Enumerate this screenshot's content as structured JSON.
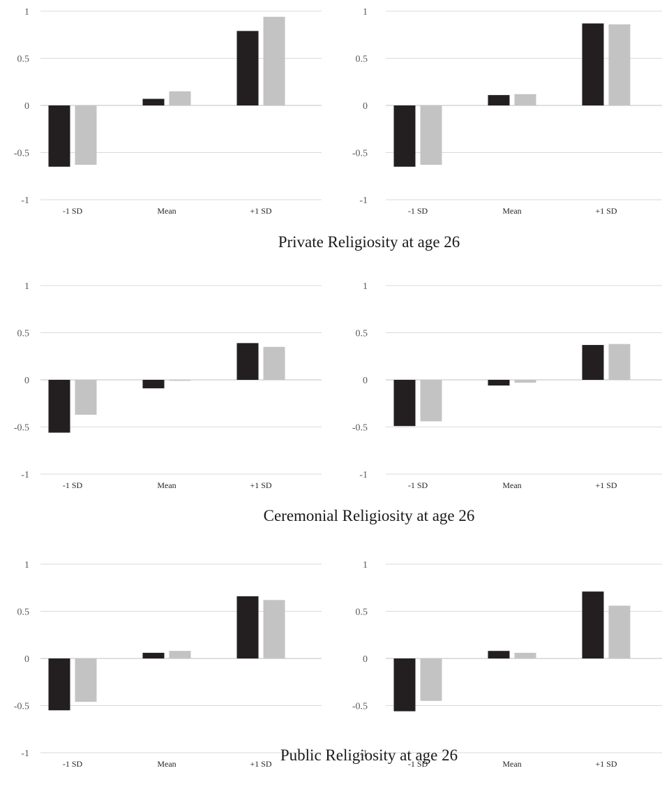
{
  "colors": {
    "series_a": "#231f20",
    "series_b": "#c3c3c3",
    "grid": "#d9d9d9",
    "text": "#595959"
  },
  "row_titles": [
    "Private Religiosity at age 26",
    "Ceremonial Religiosity at age 26",
    "Public Religiosity at age 26"
  ],
  "chart_data": [
    {
      "type": "bar",
      "row": 0,
      "col": 0,
      "categories": [
        "-1 SD",
        "Mean",
        "+1 SD"
      ],
      "yticks": [
        "1",
        "0.5",
        "0",
        "-0.5",
        "-1"
      ],
      "ylim": [
        -1,
        1
      ],
      "series": [
        {
          "values": [
            -0.65,
            0.07,
            0.79
          ]
        },
        {
          "values": [
            -0.63,
            0.15,
            0.94
          ]
        }
      ]
    },
    {
      "type": "bar",
      "row": 0,
      "col": 1,
      "categories": [
        "-1 SD",
        "Mean",
        "+1 SD"
      ],
      "yticks": [
        "1",
        "0.5",
        "0",
        "-0.5",
        "-1"
      ],
      "ylim": [
        -1,
        1
      ],
      "series": [
        {
          "values": [
            -0.65,
            0.11,
            0.87
          ]
        },
        {
          "values": [
            -0.63,
            0.12,
            0.86
          ]
        }
      ]
    },
    {
      "type": "bar",
      "row": 1,
      "col": 0,
      "categories": [
        "-1 SD",
        "Mean",
        "+1 SD"
      ],
      "yticks": [
        "1",
        "0.5",
        "0",
        "-0.5",
        "-1"
      ],
      "ylim": [
        -1,
        1
      ],
      "series": [
        {
          "values": [
            -0.56,
            -0.09,
            0.39
          ]
        },
        {
          "values": [
            -0.37,
            -0.01,
            0.35
          ]
        }
      ]
    },
    {
      "type": "bar",
      "row": 1,
      "col": 1,
      "categories": [
        "-1 SD",
        "Mean",
        "+1 SD"
      ],
      "yticks": [
        "1",
        "0.5",
        "0",
        "-0.5",
        "-1"
      ],
      "ylim": [
        -1,
        1
      ],
      "series": [
        {
          "values": [
            -0.49,
            -0.06,
            0.37
          ]
        },
        {
          "values": [
            -0.44,
            -0.03,
            0.38
          ]
        }
      ]
    },
    {
      "type": "bar",
      "row": 2,
      "col": 0,
      "categories": [
        "-1 SD",
        "Mean",
        "+1 SD"
      ],
      "yticks": [
        "1",
        "0.5",
        "0",
        "-0.5",
        "-1"
      ],
      "ylim": [
        -1,
        1
      ],
      "series": [
        {
          "values": [
            -0.55,
            0.06,
            0.66
          ]
        },
        {
          "values": [
            -0.46,
            0.08,
            0.62
          ]
        }
      ]
    },
    {
      "type": "bar",
      "row": 2,
      "col": 1,
      "categories": [
        "-1 SD",
        "Mean",
        "+1 SD"
      ],
      "yticks": [
        "1",
        "0.5",
        "0",
        "-0.5",
        "-1"
      ],
      "ylim": [
        -1,
        1
      ],
      "series": [
        {
          "values": [
            -0.56,
            0.08,
            0.71
          ]
        },
        {
          "values": [
            -0.45,
            0.06,
            0.56
          ]
        }
      ]
    }
  ]
}
